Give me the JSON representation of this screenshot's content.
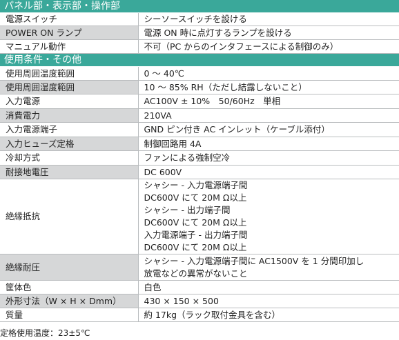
{
  "sections": [
    {
      "title": "パネル部・表示部・操作部",
      "rows": [
        {
          "label": "電源スイッチ",
          "value": [
            "シーソースイッチを設ける"
          ],
          "shade": false
        },
        {
          "label": "POWER ON ランプ",
          "value": [
            "電源 ON 時に点灯するランプを設ける"
          ],
          "shade": true
        },
        {
          "label": "マニュアル動作",
          "value": [
            "不可（PC からのインタフェースによる制御のみ）"
          ],
          "shade": false
        }
      ]
    },
    {
      "title": "使用条件・その他",
      "rows": [
        {
          "label": "使用周囲温度範囲",
          "value": [
            "0 ～ 40℃"
          ],
          "shade": false
        },
        {
          "label": "使用周囲湿度範囲",
          "value": [
            "10 ～ 85% RH（ただし結露しないこと）"
          ],
          "shade": true
        },
        {
          "label": "入力電源",
          "value": [
            "AC100V ± 10%　50/60Hz　単相"
          ],
          "shade": false
        },
        {
          "label": "消費電力",
          "value": [
            "210VA"
          ],
          "shade": true
        },
        {
          "label": "入力電源端子",
          "value": [
            "GND ピン付き AC インレット（ケーブル添付）"
          ],
          "shade": false
        },
        {
          "label": "入力ヒューズ定格",
          "value": [
            "制御回路用 4A"
          ],
          "shade": true
        },
        {
          "label": "冷却方式",
          "value": [
            "ファンによる強制空冷"
          ],
          "shade": false
        },
        {
          "label": "耐接地電圧",
          "value": [
            "DC 600V"
          ],
          "shade": true
        },
        {
          "label": "絶縁抵抗",
          "value": [
            "シャシー - 入力電源端子間",
            "DC600V にて 20M Ω以上",
            "シャシー - 出力端子間",
            "DC600V にて 20M Ω以上",
            "入力電源端子 - 出力端子間",
            "DC600V にて 20M Ω以上"
          ],
          "shade": false
        },
        {
          "label": "絶縁耐圧",
          "value": [
            "シャシー - 入力電源端子間に AC1500V を 1 分間印加し",
            "放電などの異常がないこと"
          ],
          "shade": true
        },
        {
          "label": "筐体色",
          "value": [
            "白色"
          ],
          "shade": false
        },
        {
          "label": "外形寸法（W × H × Dmm）",
          "value": [
            "430 × 150 × 500"
          ],
          "shade": true
        },
        {
          "label": "質量",
          "value": [
            "約 17kg（ラック取付金具を含む）"
          ],
          "shade": false
        }
      ]
    }
  ],
  "footnote": "定格使用温度：23±5℃",
  "colors": {
    "section_header": "#3aa89a",
    "label_shade": "#d6d7d8",
    "border": "#b9bcbe"
  }
}
